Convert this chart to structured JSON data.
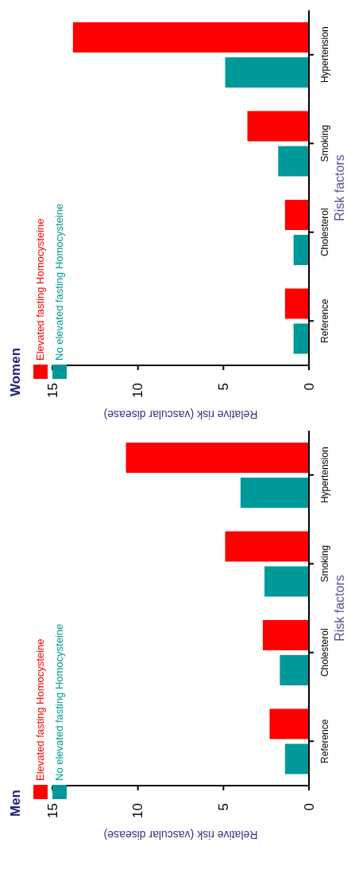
{
  "chart_data": [
    {
      "type": "bar",
      "orientation": "horizontal",
      "title": "Men",
      "xlabel": "Relative risk (vascular disease)",
      "ylabel": "Risk factors",
      "categories": [
        "Hypertension",
        "Smoking",
        "Cholesterol",
        "Reference"
      ],
      "series": [
        {
          "name": "Elevated fasting Homocysteine",
          "color": "#ff0000",
          "values": [
            10.7,
            4.9,
            2.7,
            2.3
          ]
        },
        {
          "name": "No elevated fasting Homocysteine",
          "color": "#009999",
          "values": [
            4.0,
            2.6,
            1.7,
            1.4
          ]
        }
      ],
      "xlim": [
        15,
        0
      ],
      "xticks": [
        15,
        10,
        5,
        0
      ],
      "grid": false,
      "legend": "bottom left"
    },
    {
      "type": "bar",
      "orientation": "horizontal",
      "title": "Women",
      "xlabel": "Relative risk (vascular disease)",
      "ylabel": "Risk factors",
      "categories": [
        "Hypertension",
        "Smoking",
        "Cholesterol",
        "Reference"
      ],
      "series": [
        {
          "name": "Elevated fasting Homocysteine",
          "color": "#ff0000",
          "values": [
            13.8,
            3.6,
            1.4,
            1.4
          ]
        },
        {
          "name": "No elevated fasting Homocysteine",
          "color": "#009999",
          "values": [
            4.9,
            1.8,
            0.9,
            0.9
          ]
        }
      ],
      "xlim": [
        15,
        0
      ],
      "xticks": [
        15,
        10,
        5,
        0
      ],
      "grid": false,
      "legend": "bottom left"
    }
  ]
}
